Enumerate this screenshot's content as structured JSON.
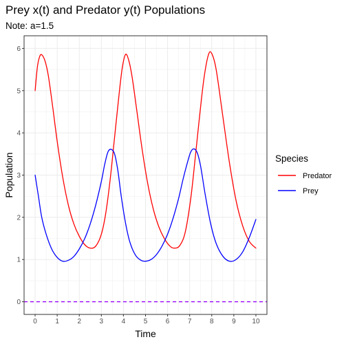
{
  "chart_data": {
    "type": "line",
    "title": "Prey x(t) and Predator y(t) Populations",
    "subtitle": "Note: a=1.5",
    "xlabel": "Time",
    "ylabel": "Population",
    "xlim": [
      -0.5,
      10.5
    ],
    "ylim": [
      -0.3,
      6.3
    ],
    "x_ticks": [
      0,
      1,
      2,
      3,
      4,
      5,
      6,
      7,
      8,
      9,
      10
    ],
    "y_ticks": [
      0,
      1,
      2,
      3,
      4,
      5,
      6
    ],
    "grid": true,
    "legend": {
      "title": "Species",
      "position": "right"
    },
    "reference_line": {
      "y": 0,
      "color": "#9900FF",
      "style": "dashed"
    },
    "series": [
      {
        "name": "Predator",
        "color": "#FF0000",
        "x": [
          0,
          0.1,
          0.2,
          0.3,
          0.45,
          0.6,
          0.8,
          1.0,
          1.25,
          1.5,
          1.75,
          2.0,
          2.25,
          2.5,
          2.75,
          3.0,
          3.2,
          3.4,
          3.6,
          3.8,
          3.95,
          4.1,
          4.25,
          4.4,
          4.6,
          4.85,
          5.1,
          5.35,
          5.6,
          5.85,
          6.1,
          6.3,
          6.55,
          6.8,
          7.05,
          7.25,
          7.45,
          7.65,
          7.85,
          8.0,
          8.2,
          8.5,
          8.8,
          9.1,
          9.4,
          9.7,
          10.0
        ],
        "values": [
          5.0,
          5.55,
          5.8,
          5.85,
          5.7,
          5.35,
          4.6,
          3.8,
          2.95,
          2.3,
          1.85,
          1.55,
          1.35,
          1.27,
          1.32,
          1.6,
          2.1,
          2.9,
          3.9,
          4.9,
          5.55,
          5.86,
          5.7,
          5.3,
          4.55,
          3.6,
          2.8,
          2.2,
          1.78,
          1.5,
          1.32,
          1.27,
          1.33,
          1.65,
          2.45,
          3.4,
          4.4,
          5.3,
          5.85,
          5.88,
          5.5,
          4.4,
          3.3,
          2.4,
          1.8,
          1.43,
          1.27
        ]
      },
      {
        "name": "Prey",
        "color": "#0000FF",
        "x": [
          0,
          0.15,
          0.3,
          0.5,
          0.75,
          1.0,
          1.25,
          1.5,
          1.75,
          2.0,
          2.25,
          2.5,
          2.75,
          3.0,
          3.15,
          3.3,
          3.45,
          3.6,
          3.75,
          3.9,
          4.1,
          4.3,
          4.55,
          4.8,
          5.0,
          5.25,
          5.5,
          5.75,
          6.0,
          6.25,
          6.5,
          6.7,
          6.9,
          7.05,
          7.2,
          7.35,
          7.5,
          7.7,
          7.95,
          8.2,
          8.5,
          8.8,
          9.1,
          9.4,
          9.7,
          10.0
        ],
        "values": [
          3.0,
          2.5,
          2.0,
          1.6,
          1.25,
          1.05,
          0.96,
          0.98,
          1.07,
          1.25,
          1.5,
          1.85,
          2.3,
          2.85,
          3.25,
          3.55,
          3.61,
          3.5,
          3.1,
          2.5,
          1.85,
          1.4,
          1.1,
          0.98,
          0.96,
          1.0,
          1.12,
          1.32,
          1.6,
          1.98,
          2.45,
          2.9,
          3.3,
          3.55,
          3.62,
          3.52,
          3.2,
          2.55,
          1.85,
          1.38,
          1.08,
          0.96,
          1.0,
          1.18,
          1.52,
          1.95
        ]
      }
    ]
  }
}
